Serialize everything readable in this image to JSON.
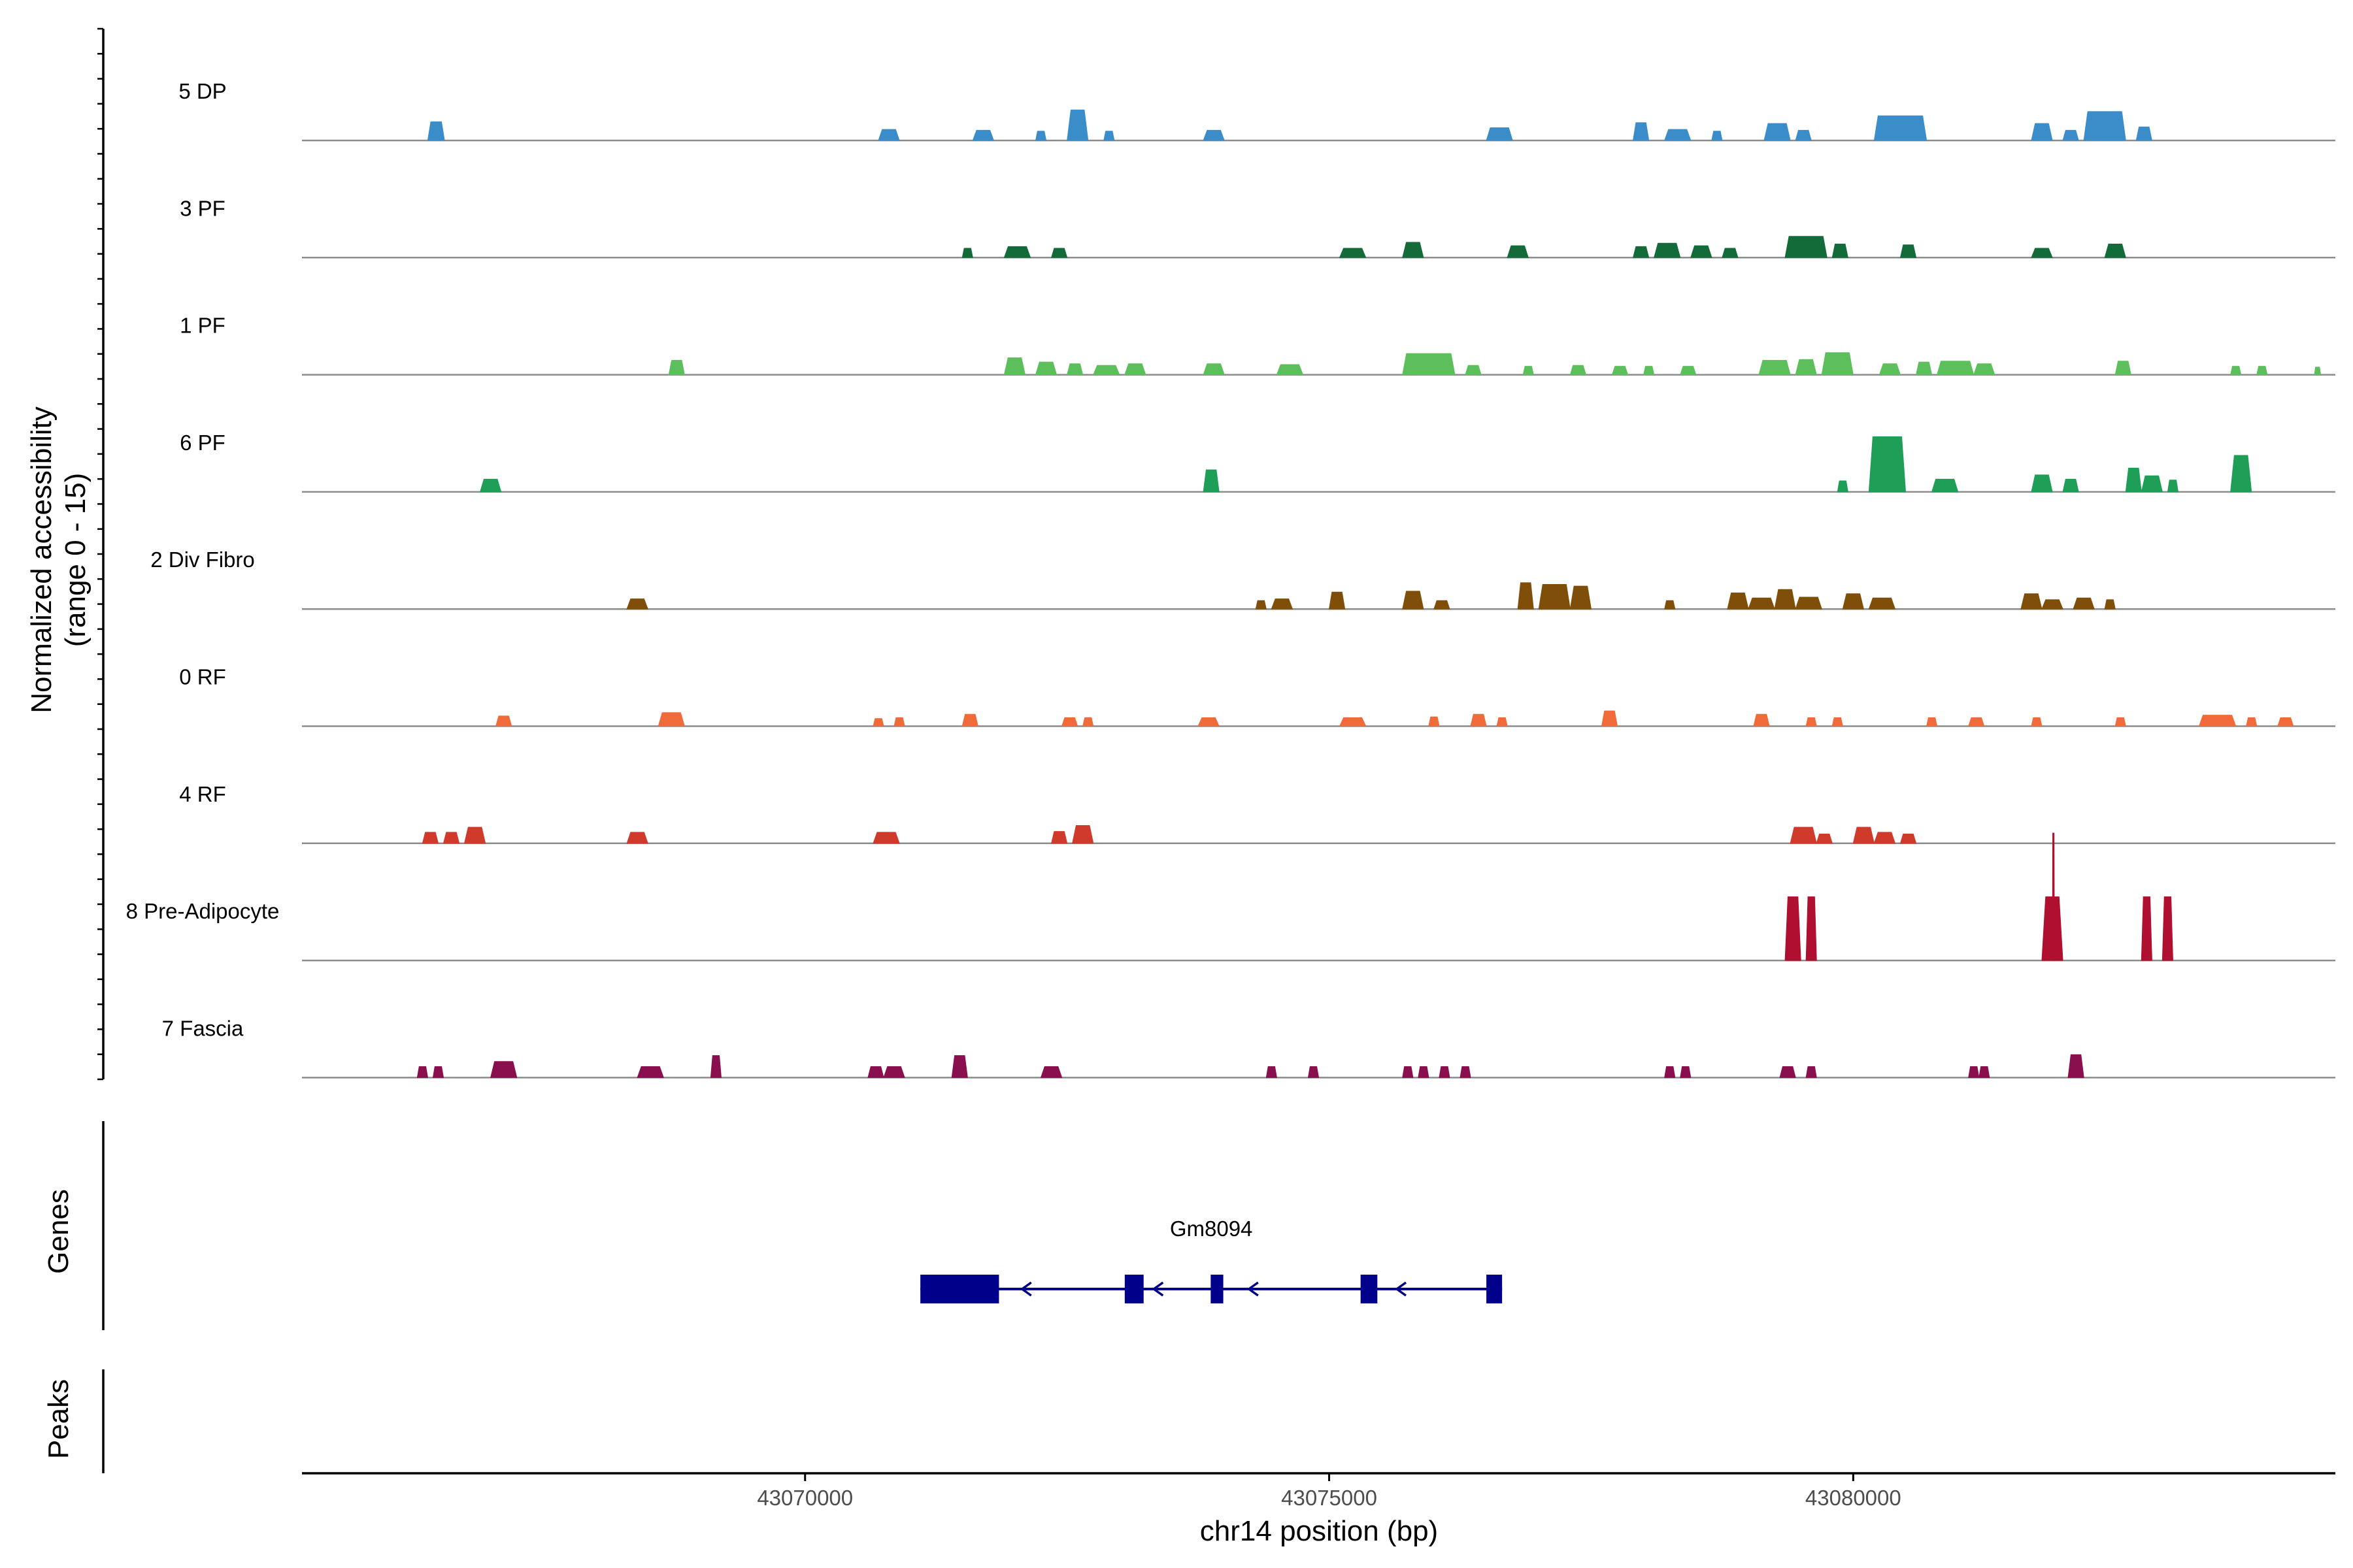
{
  "chart_data": {
    "type": "area",
    "y_axis_label_line1": "Normalized accessibility",
    "y_axis_label_line2": "(range 0 - 15)",
    "ylim": [
      0,
      15
    ],
    "x_axis_label": "chr14 position (bp)",
    "xlim": [
      43065200,
      43084600
    ],
    "x_ticks": [
      43070000,
      43075000,
      43080000
    ],
    "x_tick_labels": [
      "43070000",
      "43075000",
      "43080000"
    ],
    "genes_label": "Genes",
    "peaks_label": "Peaks",
    "gene": {
      "name": "Gm8094",
      "strand": "-",
      "start": 43071100,
      "end": 43076650,
      "color": "#00008B",
      "exons": [
        {
          "start": 43071100,
          "end": 43071850
        },
        {
          "start": 43073050,
          "end": 43073230
        },
        {
          "start": 43073870,
          "end": 43073990
        },
        {
          "start": 43075300,
          "end": 43075460
        },
        {
          "start": 43076500,
          "end": 43076650
        }
      ]
    },
    "tracks": [
      {
        "name": "5 DP",
        "color": "#3a8dc9",
        "peaks": [
          {
            "s": 43066400,
            "e": 43066560,
            "h": 2.2
          },
          {
            "s": 43070700,
            "e": 43070900,
            "h": 1.3
          },
          {
            "s": 43071600,
            "e": 43071800,
            "h": 1.2
          },
          {
            "s": 43072200,
            "e": 43072300,
            "h": 1.1
          },
          {
            "s": 43072500,
            "e": 43072700,
            "h": 3.6
          },
          {
            "s": 43072850,
            "e": 43072950,
            "h": 1.1
          },
          {
            "s": 43073800,
            "e": 43074000,
            "h": 1.2
          },
          {
            "s": 43076500,
            "e": 43076750,
            "h": 1.5
          },
          {
            "s": 43077900,
            "e": 43078050,
            "h": 2.1
          },
          {
            "s": 43078200,
            "e": 43078450,
            "h": 1.3
          },
          {
            "s": 43078650,
            "e": 43078750,
            "h": 1.1
          },
          {
            "s": 43079150,
            "e": 43079400,
            "h": 2.0
          },
          {
            "s": 43079450,
            "e": 43079600,
            "h": 1.2
          },
          {
            "s": 43080200,
            "e": 43080700,
            "h": 2.9
          },
          {
            "s": 43081700,
            "e": 43081900,
            "h": 2.0
          },
          {
            "s": 43082000,
            "e": 43082150,
            "h": 1.2
          },
          {
            "s": 43082200,
            "e": 43082600,
            "h": 3.4
          },
          {
            "s": 43082700,
            "e": 43082850,
            "h": 1.6
          }
        ]
      },
      {
        "name": "3 PF",
        "color": "#146b3a",
        "peaks": [
          {
            "s": 43071500,
            "e": 43071600,
            "h": 1.1
          },
          {
            "s": 43071900,
            "e": 43072150,
            "h": 1.3
          },
          {
            "s": 43072350,
            "e": 43072500,
            "h": 1.1
          },
          {
            "s": 43075100,
            "e": 43075350,
            "h": 1.1
          },
          {
            "s": 43075700,
            "e": 43075900,
            "h": 1.8
          },
          {
            "s": 43076700,
            "e": 43076900,
            "h": 1.4
          },
          {
            "s": 43077900,
            "e": 43078050,
            "h": 1.3
          },
          {
            "s": 43078100,
            "e": 43078350,
            "h": 1.7
          },
          {
            "s": 43078450,
            "e": 43078650,
            "h": 1.4
          },
          {
            "s": 43078750,
            "e": 43078900,
            "h": 1.1
          },
          {
            "s": 43079350,
            "e": 43079750,
            "h": 2.5
          },
          {
            "s": 43079800,
            "e": 43079950,
            "h": 1.6
          },
          {
            "s": 43080450,
            "e": 43080600,
            "h": 1.5
          },
          {
            "s": 43081700,
            "e": 43081900,
            "h": 1.1
          },
          {
            "s": 43082400,
            "e": 43082600,
            "h": 1.6
          }
        ]
      },
      {
        "name": "1 PF",
        "color": "#5cbf5c",
        "peaks": [
          {
            "s": 43068700,
            "e": 43068850,
            "h": 1.7
          },
          {
            "s": 43071900,
            "e": 43072100,
            "h": 2.0
          },
          {
            "s": 43072200,
            "e": 43072400,
            "h": 1.5
          },
          {
            "s": 43072500,
            "e": 43072650,
            "h": 1.3
          },
          {
            "s": 43072750,
            "e": 43073000,
            "h": 1.1
          },
          {
            "s": 43073050,
            "e": 43073250,
            "h": 1.3
          },
          {
            "s": 43073800,
            "e": 43074000,
            "h": 1.3
          },
          {
            "s": 43074500,
            "e": 43074750,
            "h": 1.2
          },
          {
            "s": 43075700,
            "e": 43076200,
            "h": 2.5
          },
          {
            "s": 43076300,
            "e": 43076450,
            "h": 1.1
          },
          {
            "s": 43076850,
            "e": 43076950,
            "h": 1.0
          },
          {
            "s": 43077300,
            "e": 43077450,
            "h": 1.1
          },
          {
            "s": 43077700,
            "e": 43077850,
            "h": 1.0
          },
          {
            "s": 43078000,
            "e": 43078100,
            "h": 1.0
          },
          {
            "s": 43078350,
            "e": 43078500,
            "h": 1.0
          },
          {
            "s": 43079100,
            "e": 43079400,
            "h": 1.7
          },
          {
            "s": 43079450,
            "e": 43079650,
            "h": 1.8
          },
          {
            "s": 43079700,
            "e": 43080000,
            "h": 2.6
          },
          {
            "s": 43080250,
            "e": 43080450,
            "h": 1.3
          },
          {
            "s": 43080600,
            "e": 43080750,
            "h": 1.5
          },
          {
            "s": 43080800,
            "e": 43081150,
            "h": 1.6
          },
          {
            "s": 43081150,
            "e": 43081350,
            "h": 1.3
          },
          {
            "s": 43082500,
            "e": 43082650,
            "h": 1.6
          },
          {
            "s": 43083600,
            "e": 43083700,
            "h": 1.0
          },
          {
            "s": 43083850,
            "e": 43083950,
            "h": 1.0
          },
          {
            "s": 43084400,
            "e": 43084460,
            "h": 0.9
          }
        ]
      },
      {
        "name": "6 PF",
        "color": "#1f9e58",
        "peaks": [
          {
            "s": 43066900,
            "e": 43067100,
            "h": 1.5
          },
          {
            "s": 43073800,
            "e": 43073950,
            "h": 2.6
          },
          {
            "s": 43079850,
            "e": 43079950,
            "h": 1.3
          },
          {
            "s": 43080150,
            "e": 43080500,
            "h": 6.5
          },
          {
            "s": 43080750,
            "e": 43081000,
            "h": 1.5
          },
          {
            "s": 43081700,
            "e": 43081900,
            "h": 2.0
          },
          {
            "s": 43082000,
            "e": 43082150,
            "h": 1.5
          },
          {
            "s": 43082600,
            "e": 43082750,
            "h": 2.8
          },
          {
            "s": 43082750,
            "e": 43082950,
            "h": 1.9
          },
          {
            "s": 43083000,
            "e": 43083100,
            "h": 1.4
          },
          {
            "s": 43083600,
            "e": 43083800,
            "h": 4.3
          }
        ]
      },
      {
        "name": "2 Div Fibro",
        "color": "#7f4f0a",
        "peaks": [
          {
            "s": 43068300,
            "e": 43068500,
            "h": 1.2
          },
          {
            "s": 43074300,
            "e": 43074400,
            "h": 1.0
          },
          {
            "s": 43074450,
            "e": 43074650,
            "h": 1.2
          },
          {
            "s": 43075000,
            "e": 43075150,
            "h": 2.0
          },
          {
            "s": 43075700,
            "e": 43075900,
            "h": 2.1
          },
          {
            "s": 43076000,
            "e": 43076150,
            "h": 1.0
          },
          {
            "s": 43076800,
            "e": 43076950,
            "h": 3.1
          },
          {
            "s": 43077000,
            "e": 43077300,
            "h": 2.9
          },
          {
            "s": 43077300,
            "e": 43077500,
            "h": 2.7
          },
          {
            "s": 43078200,
            "e": 43078300,
            "h": 1.0
          },
          {
            "s": 43078800,
            "e": 43079000,
            "h": 1.9
          },
          {
            "s": 43079000,
            "e": 43079250,
            "h": 1.3
          },
          {
            "s": 43079250,
            "e": 43079450,
            "h": 2.3
          },
          {
            "s": 43079450,
            "e": 43079700,
            "h": 1.4
          },
          {
            "s": 43079900,
            "e": 43080100,
            "h": 1.8
          },
          {
            "s": 43080150,
            "e": 43080400,
            "h": 1.3
          },
          {
            "s": 43081600,
            "e": 43081800,
            "h": 1.8
          },
          {
            "s": 43081800,
            "e": 43082000,
            "h": 1.1
          },
          {
            "s": 43082100,
            "e": 43082300,
            "h": 1.3
          },
          {
            "s": 43082400,
            "e": 43082500,
            "h": 1.1
          }
        ]
      },
      {
        "name": "0 RF",
        "color": "#f06a3a",
        "peaks": [
          {
            "s": 43067050,
            "e": 43067200,
            "h": 1.2
          },
          {
            "s": 43068600,
            "e": 43068850,
            "h": 1.6
          },
          {
            "s": 43070650,
            "e": 43070750,
            "h": 0.9
          },
          {
            "s": 43070850,
            "e": 43070950,
            "h": 1.0
          },
          {
            "s": 43071500,
            "e": 43071650,
            "h": 1.4
          },
          {
            "s": 43072450,
            "e": 43072600,
            "h": 1.0
          },
          {
            "s": 43072650,
            "e": 43072750,
            "h": 1.0
          },
          {
            "s": 43073750,
            "e": 43073950,
            "h": 1.0
          },
          {
            "s": 43075100,
            "e": 43075350,
            "h": 1.0
          },
          {
            "s": 43075950,
            "e": 43076050,
            "h": 1.1
          },
          {
            "s": 43076350,
            "e": 43076500,
            "h": 1.4
          },
          {
            "s": 43076600,
            "e": 43076700,
            "h": 1.0
          },
          {
            "s": 43077600,
            "e": 43077750,
            "h": 1.8
          },
          {
            "s": 43079050,
            "e": 43079200,
            "h": 1.4
          },
          {
            "s": 43079550,
            "e": 43079650,
            "h": 1.0
          },
          {
            "s": 43079800,
            "e": 43079900,
            "h": 1.0
          },
          {
            "s": 43080700,
            "e": 43080800,
            "h": 1.0
          },
          {
            "s": 43081100,
            "e": 43081250,
            "h": 1.0
          },
          {
            "s": 43081700,
            "e": 43081800,
            "h": 1.0
          },
          {
            "s": 43082500,
            "e": 43082600,
            "h": 1.0
          },
          {
            "s": 43083300,
            "e": 43083650,
            "h": 1.3
          },
          {
            "s": 43083750,
            "e": 43083850,
            "h": 1.0
          },
          {
            "s": 43084050,
            "e": 43084200,
            "h": 1.0
          }
        ]
      },
      {
        "name": "4 RF",
        "color": "#d03a2a",
        "peaks": [
          {
            "s": 43066350,
            "e": 43066500,
            "h": 1.3
          },
          {
            "s": 43066550,
            "e": 43066700,
            "h": 1.3
          },
          {
            "s": 43066750,
            "e": 43066950,
            "h": 1.9
          },
          {
            "s": 43068300,
            "e": 43068500,
            "h": 1.3
          },
          {
            "s": 43070650,
            "e": 43070900,
            "h": 1.3
          },
          {
            "s": 43072350,
            "e": 43072500,
            "h": 1.4
          },
          {
            "s": 43072550,
            "e": 43072750,
            "h": 2.1
          },
          {
            "s": 43079400,
            "e": 43079650,
            "h": 1.9
          },
          {
            "s": 43079650,
            "e": 43079800,
            "h": 1.1
          },
          {
            "s": 43080000,
            "e": 43080200,
            "h": 1.9
          },
          {
            "s": 43080200,
            "e": 43080400,
            "h": 1.3
          },
          {
            "s": 43080450,
            "e": 43080600,
            "h": 1.1
          }
        ]
      },
      {
        "name": "8 Pre-Adipocyte",
        "color": "#b0102f",
        "peaks": [
          {
            "s": 43079350,
            "e": 43079500,
            "h": 7.5
          },
          {
            "s": 43079550,
            "e": 43079650,
            "h": 7.5
          },
          {
            "s": 43081800,
            "e": 43082000,
            "h": 7.5
          },
          {
            "s": 43081900,
            "e": 43081920,
            "h": 15.0
          },
          {
            "s": 43082750,
            "e": 43082850,
            "h": 7.5
          },
          {
            "s": 43082950,
            "e": 43083050,
            "h": 7.5
          }
        ]
      },
      {
        "name": "7 Fascia",
        "color": "#8a0f4e",
        "peaks": [
          {
            "s": 43066300,
            "e": 43066400,
            "h": 1.3
          },
          {
            "s": 43066450,
            "e": 43066550,
            "h": 1.3
          },
          {
            "s": 43067000,
            "e": 43067250,
            "h": 1.9
          },
          {
            "s": 43068400,
            "e": 43068650,
            "h": 1.3
          },
          {
            "s": 43069100,
            "e": 43069200,
            "h": 2.6
          },
          {
            "s": 43070600,
            "e": 43070750,
            "h": 1.3
          },
          {
            "s": 43070750,
            "e": 43070950,
            "h": 1.3
          },
          {
            "s": 43071400,
            "e": 43071550,
            "h": 2.6
          },
          {
            "s": 43072250,
            "e": 43072450,
            "h": 1.3
          },
          {
            "s": 43074400,
            "e": 43074500,
            "h": 1.3
          },
          {
            "s": 43074800,
            "e": 43074900,
            "h": 1.3
          },
          {
            "s": 43075700,
            "e": 43075800,
            "h": 1.3
          },
          {
            "s": 43075850,
            "e": 43075950,
            "h": 1.3
          },
          {
            "s": 43076050,
            "e": 43076150,
            "h": 1.3
          },
          {
            "s": 43076250,
            "e": 43076350,
            "h": 1.3
          },
          {
            "s": 43078200,
            "e": 43078300,
            "h": 1.3
          },
          {
            "s": 43078350,
            "e": 43078450,
            "h": 1.3
          },
          {
            "s": 43079300,
            "e": 43079450,
            "h": 1.3
          },
          {
            "s": 43079550,
            "e": 43079650,
            "h": 1.3
          },
          {
            "s": 43081100,
            "e": 43081200,
            "h": 1.3
          },
          {
            "s": 43081200,
            "e": 43081300,
            "h": 1.3
          },
          {
            "s": 43082050,
            "e": 43082200,
            "h": 2.7
          }
        ]
      }
    ]
  }
}
